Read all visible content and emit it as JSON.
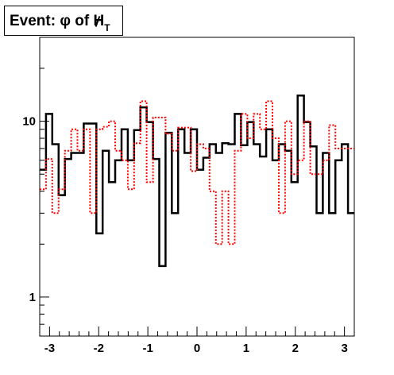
{
  "title": {
    "prefix": "Event: ",
    "phi": "φ",
    "of": " of ",
    "met": "H",
    "met_sub": "T"
  },
  "chart_data": {
    "type": "step",
    "title": "Event: φ of H_T",
    "xlabel": "",
    "ylabel": "",
    "xlim": [
      -3.2,
      3.2
    ],
    "ylim": [
      0.6,
      30
    ],
    "ylog": true,
    "x_ticks": [
      "-3",
      "-2",
      "-1",
      "0",
      "1",
      "2",
      "3"
    ],
    "x_tick_values": [
      -3,
      -2,
      -1,
      0,
      1,
      2,
      3
    ],
    "y_ticks": [
      "1",
      "10"
    ],
    "y_tick_values": [
      1,
      10
    ],
    "bins": 50,
    "series": [
      {
        "style": "solid",
        "color": "#000000",
        "values": [
          5.3,
          11.0,
          7.4,
          3.8,
          6.1,
          6.6,
          6.6,
          9.7,
          9.7,
          2.3,
          6.8,
          4.5,
          6.0,
          9.0,
          6.0,
          8.9,
          12.0,
          9.9,
          6.1,
          1.5,
          8.6,
          3.0,
          9.0,
          6.6,
          9.0,
          5.3,
          6.2,
          7.4,
          6.6,
          7.5,
          7.4,
          11.0,
          7.3,
          9.9,
          7.4,
          6.3,
          9.0,
          6.0,
          7.4,
          6.8,
          4.5,
          14.0,
          9.9,
          7.2,
          3.0,
          6.6,
          3.0,
          6.0,
          7.4,
          3.0
        ]
      },
      {
        "style": "dotted",
        "color": "#ff0000",
        "values": [
          4.1,
          6.1,
          3.0,
          4.1,
          6.8,
          9.0,
          6.8,
          9.0,
          3.0,
          9.0,
          9.3,
          10.0,
          6.8,
          6.0,
          4.1,
          7.5,
          13.0,
          4.5,
          10.5,
          10.5,
          8.5,
          6.8,
          9.2,
          9.2,
          5.2,
          7.4,
          7.0,
          4.0,
          2.0,
          4.0,
          2.0,
          6.8,
          11.0,
          8.0,
          11.0,
          9.0,
          13.0,
          8.0,
          3.0,
          10.0,
          5.0,
          6.0,
          10.0,
          5.0,
          5.0,
          6.0,
          9.5,
          7.0,
          7.0,
          7.0
        ]
      }
    ]
  }
}
